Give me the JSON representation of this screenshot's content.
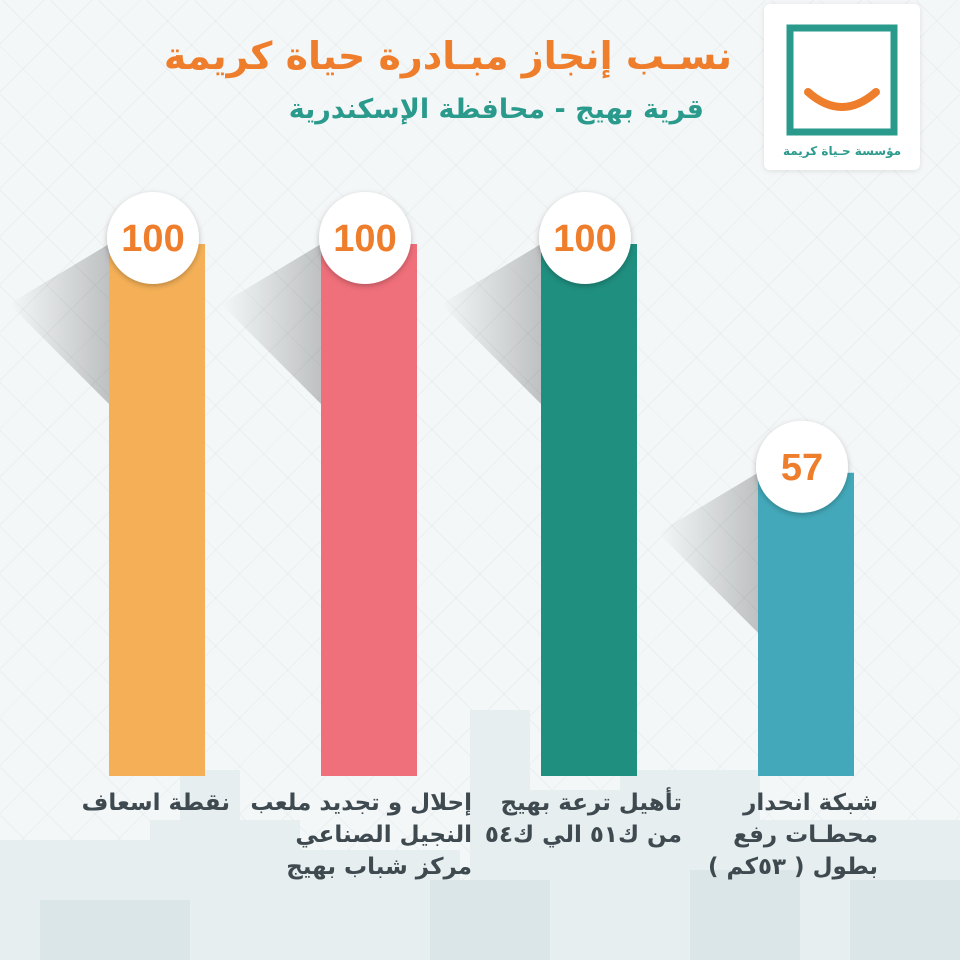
{
  "header": {
    "title": "نسـب إنجاز مبـادرة حياة كريمة",
    "subtitle": "قرية بهيج -  محافظة الإسكندرية"
  },
  "logo": {
    "text": "مؤسسة حـياة كريمة",
    "icon": "smile-frame-icon"
  },
  "colors": {
    "title": "#ee7d2c",
    "subtitle": "#2a9a8c",
    "value_text": "#ee7d2c",
    "bars": [
      "#f5b057",
      "#ef6f7a",
      "#1f8f7f",
      "#43a9ba"
    ]
  },
  "chart_data": {
    "type": "bar",
    "title": "نسـب إنجاز مبـادرة حياة كريمة",
    "subtitle": "قرية بهيج -  محافظة الإسكندرية",
    "ylim": [
      0,
      100
    ],
    "grid": false,
    "categories": [
      [
        "نقطة اسعاف"
      ],
      [
        "إحلال و تجديد ملعب",
        "النجيل الصناعي",
        "مركز شباب بهيج"
      ],
      [
        "تأهيل ترعة بهيج",
        "من ك٥١ الي ك٥٤"
      ],
      [
        "شبكة انحدار",
        "محطـات رفع",
        "بطول ( ٥٣كم )"
      ]
    ],
    "values": [
      100,
      100,
      100,
      57
    ]
  }
}
